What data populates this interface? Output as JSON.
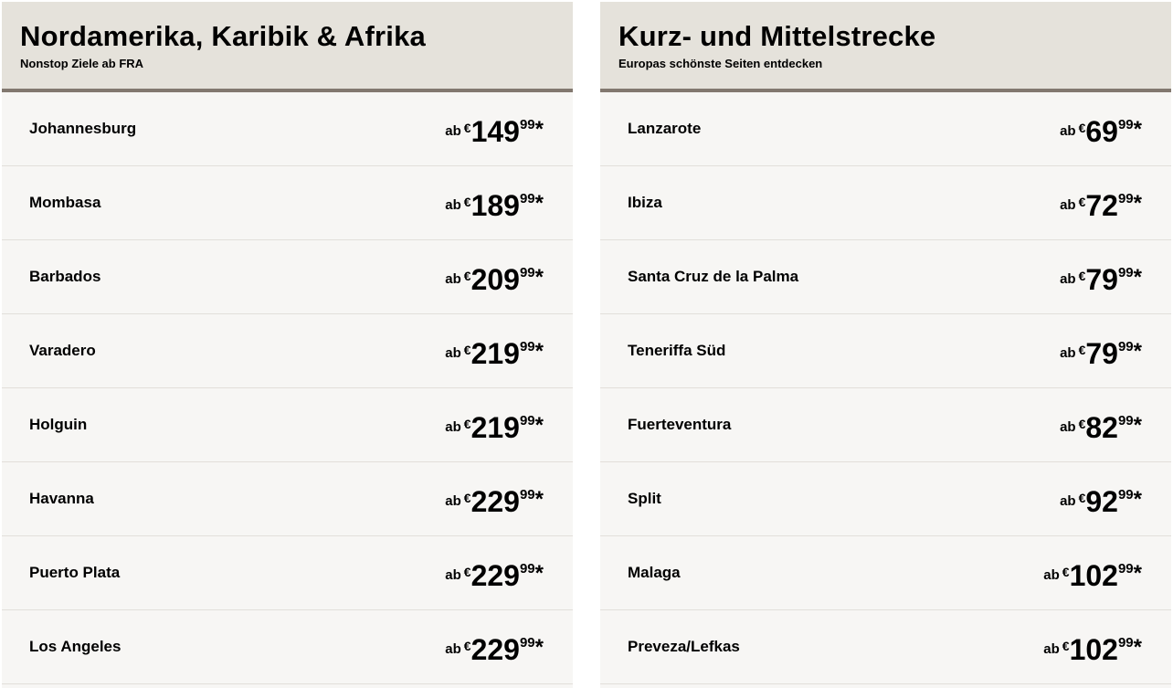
{
  "panels": [
    {
      "title": "Nordamerika, Karibik & Afrika",
      "subtitle": "Nonstop Ziele ab FRA",
      "rows": [
        {
          "city": "Johannesburg",
          "prefix": "ab",
          "currency": "€",
          "euros": "149",
          "cents": "99",
          "mark": "*"
        },
        {
          "city": "Mombasa",
          "prefix": "ab",
          "currency": "€",
          "euros": "189",
          "cents": "99",
          "mark": "*"
        },
        {
          "city": "Barbados",
          "prefix": "ab",
          "currency": "€",
          "euros": "209",
          "cents": "99",
          "mark": "*"
        },
        {
          "city": "Varadero",
          "prefix": "ab",
          "currency": "€",
          "euros": "219",
          "cents": "99",
          "mark": "*"
        },
        {
          "city": "Holguin",
          "prefix": "ab",
          "currency": "€",
          "euros": "219",
          "cents": "99",
          "mark": "*"
        },
        {
          "city": "Havanna",
          "prefix": "ab",
          "currency": "€",
          "euros": "229",
          "cents": "99",
          "mark": "*"
        },
        {
          "city": "Puerto Plata",
          "prefix": "ab",
          "currency": "€",
          "euros": "229",
          "cents": "99",
          "mark": "*"
        },
        {
          "city": "Los Angeles",
          "prefix": "ab",
          "currency": "€",
          "euros": "229",
          "cents": "99",
          "mark": "*"
        }
      ]
    },
    {
      "title": "Kurz- und Mittelstrecke",
      "subtitle": "Europas schönste Seiten entdecken",
      "rows": [
        {
          "city": "Lanzarote",
          "prefix": "ab",
          "currency": "€",
          "euros": "69",
          "cents": "99",
          "mark": "*"
        },
        {
          "city": "Ibiza",
          "prefix": "ab",
          "currency": "€",
          "euros": "72",
          "cents": "99",
          "mark": "*"
        },
        {
          "city": "Santa Cruz de la Palma",
          "prefix": "ab",
          "currency": "€",
          "euros": "79",
          "cents": "99",
          "mark": "*"
        },
        {
          "city": "Teneriffa Süd",
          "prefix": "ab",
          "currency": "€",
          "euros": "79",
          "cents": "99",
          "mark": "*"
        },
        {
          "city": "Fuerteventura",
          "prefix": "ab",
          "currency": "€",
          "euros": "82",
          "cents": "99",
          "mark": "*"
        },
        {
          "city": "Split",
          "prefix": "ab",
          "currency": "€",
          "euros": "92",
          "cents": "99",
          "mark": "*"
        },
        {
          "city": "Malaga",
          "prefix": "ab",
          "currency": "€",
          "euros": "102",
          "cents": "99",
          "mark": "*"
        },
        {
          "city": "Preveza/Lefkas",
          "prefix": "ab",
          "currency": "€",
          "euros": "102",
          "cents": "99",
          "mark": "*"
        }
      ]
    }
  ],
  "colors": {
    "header_bg": "#e5e2db",
    "header_border": "#82786f",
    "row_bg": "#f7f6f4"
  }
}
